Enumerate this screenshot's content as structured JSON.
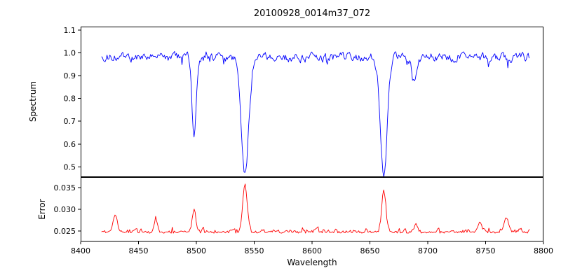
{
  "title": "20100928_0014m37_072",
  "xlabel": "Wavelength",
  "x_axis": {
    "lim": [
      8400,
      8800
    ],
    "tick_values": [
      8400,
      8450,
      8500,
      8550,
      8600,
      8650,
      8700,
      8750,
      8800
    ],
    "tick_labels": [
      "8400",
      "8450",
      "8500",
      "8550",
      "8600",
      "8650",
      "8700",
      "8750",
      "8800"
    ]
  },
  "chart_data": [
    {
      "type": "line",
      "name": "spectrum",
      "ylabel": "Spectrum",
      "color": "#0000ff",
      "ylim": [
        0.455,
        1.115
      ],
      "ytick_values": [
        1.1,
        1.0,
        0.9,
        0.8,
        0.7,
        0.6,
        0.5
      ],
      "ytick_labels": [
        "1.1",
        "1.0",
        "0.9",
        "0.8",
        "0.7",
        "0.6",
        "0.5"
      ],
      "x_range": [
        8418,
        8788
      ],
      "continuum": 0.98,
      "noise_amplitude": 0.016,
      "absorption_lines": [
        {
          "center": 8498,
          "min": 0.63,
          "sigma": 1.8
        },
        {
          "center": 8542,
          "min": 0.46,
          "sigma": 3.2
        },
        {
          "center": 8662,
          "min": 0.48,
          "sigma": 3.0
        },
        {
          "center": 8688,
          "min": 0.88,
          "sigma": 1.8
        }
      ],
      "grid": false,
      "legend": false
    },
    {
      "type": "line",
      "name": "error",
      "ylabel": "Error",
      "color": "#ff0000",
      "ylim": [
        0.0226,
        0.0374
      ],
      "ytick_values": [
        0.035,
        0.03,
        0.025
      ],
      "ytick_labels": [
        "0.035",
        "0.030",
        "0.025"
      ],
      "x_range": [
        8418,
        8788
      ],
      "baseline": 0.0245,
      "noise_amplitude": 0.0007,
      "peaks": [
        {
          "center": 8430,
          "max": 0.0285,
          "sigma": 1.8
        },
        {
          "center": 8465,
          "max": 0.0276,
          "sigma": 1.4
        },
        {
          "center": 8498,
          "max": 0.0296,
          "sigma": 1.6
        },
        {
          "center": 8542,
          "max": 0.0353,
          "sigma": 2.0
        },
        {
          "center": 8662,
          "max": 0.0341,
          "sigma": 1.8
        },
        {
          "center": 8690,
          "max": 0.0262,
          "sigma": 1.5
        },
        {
          "center": 8745,
          "max": 0.0271,
          "sigma": 1.5
        },
        {
          "center": 8768,
          "max": 0.0278,
          "sigma": 2.0
        }
      ],
      "grid": false,
      "legend": false
    }
  ]
}
